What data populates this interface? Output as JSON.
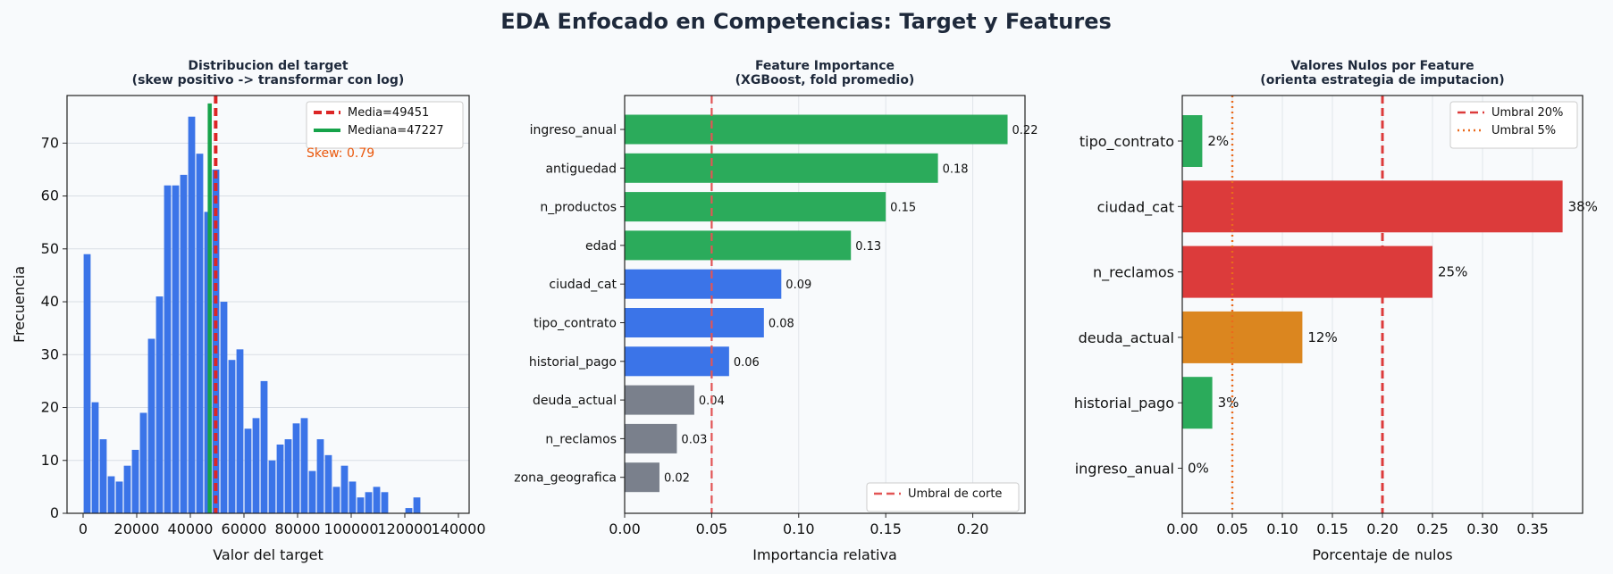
{
  "title": "EDA Enfocado en Competencias: Target y Features",
  "chart_data": [
    {
      "type": "bar",
      "title": "Distribucion del target\n(skew positivo -> transformar con log)",
      "xlabel": "Valor del target",
      "ylabel": "Frecuencia",
      "xlim": [
        -6000,
        144000
      ],
      "ylim": [
        0,
        79
      ],
      "xticks": [
        0,
        20000,
        40000,
        60000,
        80000,
        100000,
        120000,
        140000
      ],
      "xtick_labels": [
        "0",
        "20000",
        "40000",
        "60000",
        "80000",
        "100000",
        "120000",
        "140000"
      ],
      "yticks": [
        0,
        10,
        20,
        30,
        40,
        50,
        60,
        70
      ],
      "bin_start": 0,
      "bin_width": 3000,
      "values": [
        49,
        21,
        14,
        7,
        6,
        9,
        12,
        19,
        33,
        41,
        62,
        62,
        64,
        75,
        68,
        57,
        65,
        40,
        29,
        31,
        16,
        18,
        25,
        10,
        13,
        14,
        17,
        18,
        8,
        14,
        11,
        5,
        9,
        6,
        3,
        4,
        5,
        4,
        0,
        0,
        1,
        3
      ],
      "bar_color": "#3b74e8",
      "grid": "horizontal",
      "legend_position": "top-right",
      "reference_lines": [
        {
          "label": "Media=49451",
          "value": 49451,
          "color": "#dc2626",
          "style": "dashed"
        },
        {
          "label": "Mediana=47227",
          "value": 47227,
          "color": "#16a34a",
          "style": "solid"
        }
      ],
      "annotation": "Skew: 0.79"
    },
    {
      "type": "bar",
      "orientation": "horizontal",
      "title": "Feature Importance\n(XGBoost, fold promedio)",
      "xlabel": "Importancia relativa",
      "xlim": [
        0,
        0.23
      ],
      "xticks": [
        0.0,
        0.05,
        0.1,
        0.15,
        0.2
      ],
      "xtick_labels": [
        "0.00",
        "0.05",
        "0.10",
        "0.15",
        "0.20"
      ],
      "categories": [
        "ingreso_anual",
        "antiguedad",
        "n_productos",
        "edad",
        "ciudad_cat",
        "tipo_contrato",
        "historial_pago",
        "deuda_actual",
        "n_reclamos",
        "zona_geografica"
      ],
      "values": [
        0.22,
        0.18,
        0.15,
        0.13,
        0.09,
        0.08,
        0.06,
        0.04,
        0.03,
        0.02
      ],
      "value_labels": [
        "0.22",
        "0.18",
        "0.15",
        "0.13",
        "0.09",
        "0.08",
        "0.06",
        "0.04",
        "0.03",
        "0.02"
      ],
      "colors": [
        "#2bab5b",
        "#2bab5b",
        "#2bab5b",
        "#2bab5b",
        "#3b74e8",
        "#3b74e8",
        "#3b74e8",
        "#7a808c",
        "#7a808c",
        "#7a808c"
      ],
      "grid": "vertical",
      "legend_position": "bottom-right",
      "reference_lines": [
        {
          "label": "Umbral de corte",
          "value": 0.05,
          "color": "#e25555",
          "style": "dashed"
        }
      ]
    },
    {
      "type": "bar",
      "orientation": "horizontal",
      "title": "Valores Nulos por Feature\n(orienta estrategia de imputacion)",
      "xlabel": "Porcentaje de nulos",
      "xlim": [
        0,
        0.4
      ],
      "xticks": [
        0.0,
        0.05,
        0.1,
        0.15,
        0.2,
        0.25,
        0.3,
        0.35
      ],
      "xtick_labels": [
        "0.00",
        "0.05",
        "0.10",
        "0.15",
        "0.20",
        "0.25",
        "0.30",
        "0.35"
      ],
      "categories": [
        "tipo_contrato",
        "ciudad_cat",
        "n_reclamos",
        "deuda_actual",
        "historial_pago",
        "ingreso_anual"
      ],
      "values": [
        0.02,
        0.38,
        0.25,
        0.12,
        0.03,
        0.0
      ],
      "value_labels": [
        "2%",
        "38%",
        "25%",
        "12%",
        "3%",
        "0%"
      ],
      "colors": [
        "#2bab5b",
        "#dc3b3b",
        "#dc3b3b",
        "#db861f",
        "#2bab5b",
        "#2bab5b"
      ],
      "grid": "vertical",
      "legend_position": "top-right",
      "reference_lines": [
        {
          "label": "Umbral 20%",
          "value": 0.2,
          "color": "#dc3b3b",
          "style": "dashed"
        },
        {
          "label": "Umbral 5%",
          "value": 0.05,
          "color": "#ea6a1c",
          "style": "dotted"
        }
      ]
    }
  ]
}
